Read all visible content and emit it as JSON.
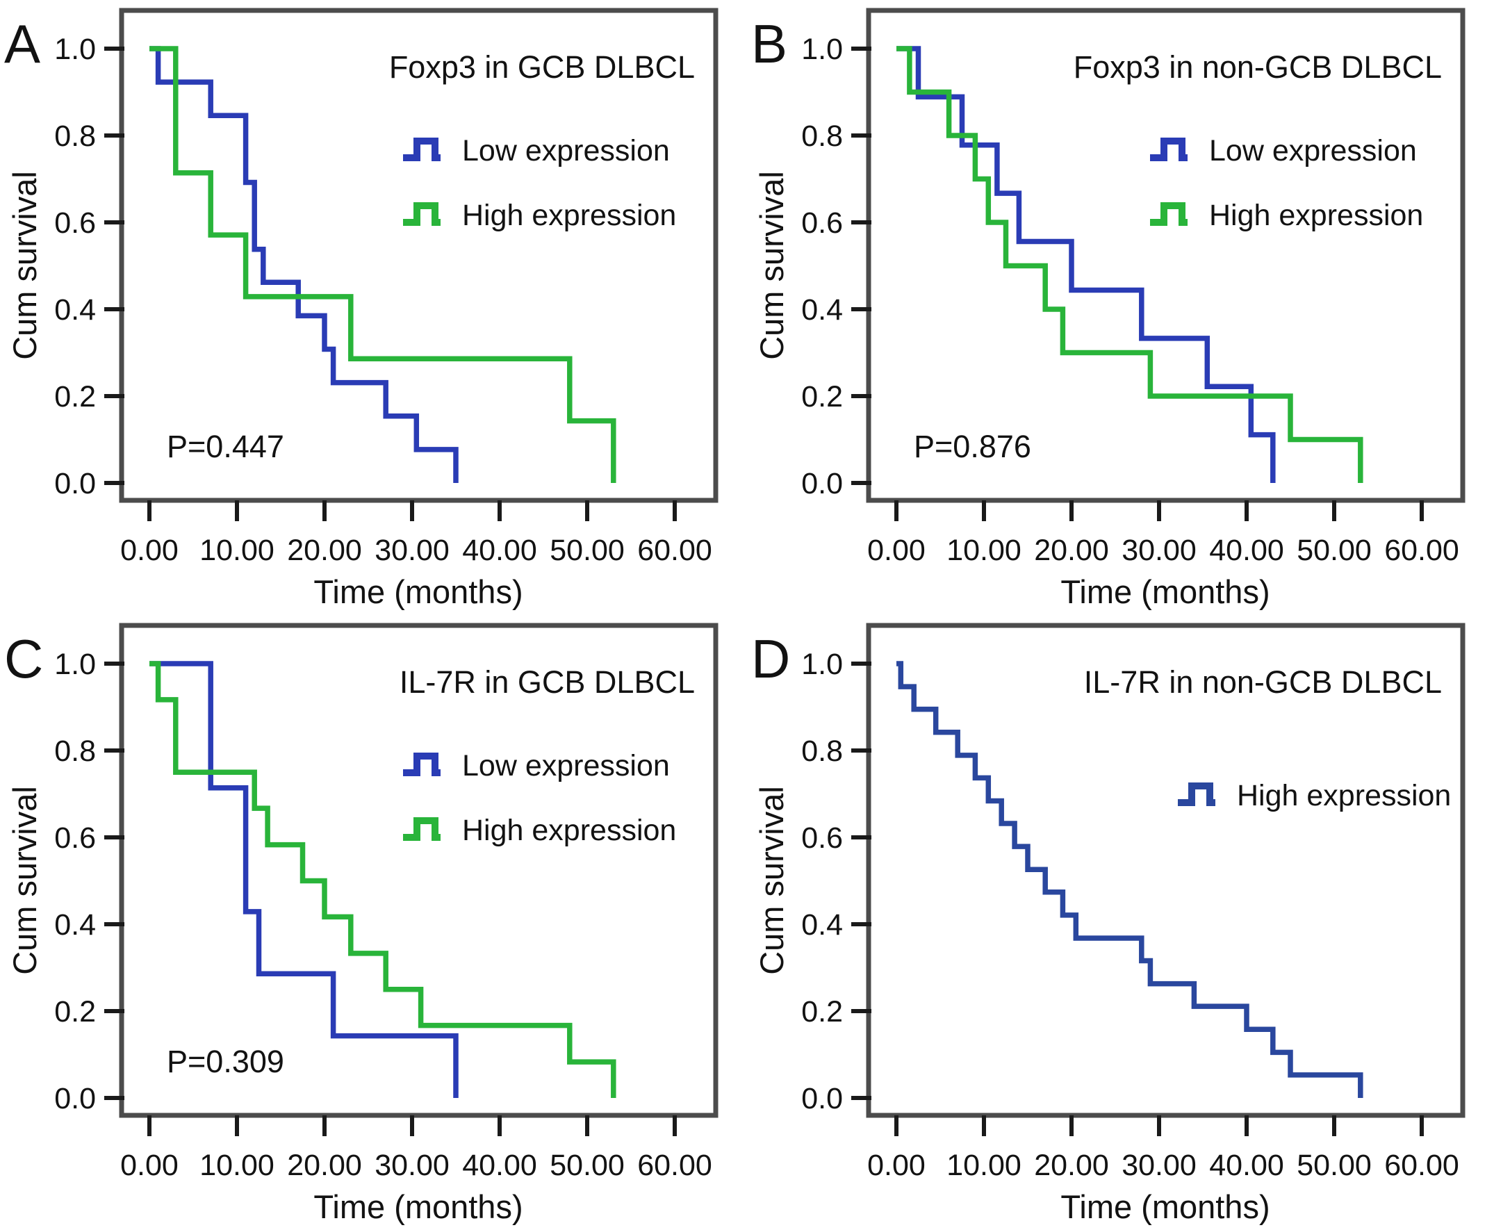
{
  "figure": {
    "x_axis_label": "Time (months)",
    "y_axis_label": "Cum survival",
    "x_tick_labels": [
      "0.00",
      "10.00",
      "20.00",
      "30.00",
      "40.00",
      "50.00",
      "60.00"
    ],
    "x_tick_values": [
      0,
      10,
      20,
      30,
      40,
      50,
      60
    ],
    "y_tick_labels": [
      "1.0",
      "0.8",
      "0.6",
      "0.4",
      "0.2",
      "0.0"
    ],
    "y_tick_values": [
      1.0,
      0.8,
      0.6,
      0.4,
      0.2,
      0.0
    ],
    "colors": {
      "low_expression_blue": "#2a3cb5",
      "high_expression_green": "#29b43a",
      "panel_d_blue": "#2a479e",
      "frame_gray": "#4c4c4c",
      "tick_black": "#1a1a1a",
      "text_black": "#121212",
      "background": "#ffffff"
    }
  },
  "chart_data": [
    {
      "type": "line",
      "panel": "A",
      "title": "Foxp3 in GCB DLBCL",
      "p_value": "P=0.447",
      "xlabel": "Time (months)",
      "ylabel": "Cum survival",
      "xlim": [
        0,
        60
      ],
      "ylim": [
        0.0,
        1.0
      ],
      "legend_position": "top-right-inside",
      "grid": false,
      "series": [
        {
          "name": "Low expression",
          "color": "#2a3cb5",
          "start": [
            0,
            1.0
          ],
          "steps": [
            [
              1,
              0.923
            ],
            [
              7,
              0.846
            ],
            [
              11,
              0.692
            ],
            [
              12,
              0.538
            ],
            [
              13,
              0.462
            ],
            [
              17,
              0.385
            ],
            [
              20,
              0.308
            ],
            [
              21,
              0.231
            ],
            [
              27,
              0.154
            ],
            [
              30.5,
              0.077
            ],
            [
              35,
              0.0
            ]
          ]
        },
        {
          "name": "High expression",
          "color": "#29b43a",
          "start": [
            0,
            1.0
          ],
          "steps": [
            [
              3,
              0.714
            ],
            [
              7,
              0.571
            ],
            [
              11,
              0.429
            ],
            [
              23,
              0.286
            ],
            [
              48,
              0.143
            ],
            [
              53,
              0.0
            ]
          ]
        }
      ]
    },
    {
      "type": "line",
      "panel": "B",
      "title": "Foxp3 in non-GCB DLBCL",
      "p_value": "P=0.876",
      "xlabel": "Time (months)",
      "ylabel": "Cum survival",
      "xlim": [
        0,
        60
      ],
      "ylim": [
        0.0,
        1.0
      ],
      "legend_position": "top-right-inside",
      "grid": false,
      "series": [
        {
          "name": "Low expression",
          "color": "#2a3cb5",
          "start": [
            0,
            1.0
          ],
          "steps": [
            [
              2.5,
              0.889
            ],
            [
              7.5,
              0.778
            ],
            [
              11.5,
              0.667
            ],
            [
              14,
              0.556
            ],
            [
              20,
              0.444
            ],
            [
              28,
              0.333
            ],
            [
              35.5,
              0.222
            ],
            [
              40.5,
              0.111
            ],
            [
              43,
              0.0
            ]
          ]
        },
        {
          "name": "High expression",
          "color": "#29b43a",
          "start": [
            0,
            1.0
          ],
          "steps": [
            [
              1.5,
              0.9
            ],
            [
              6,
              0.8
            ],
            [
              9,
              0.7
            ],
            [
              10.5,
              0.6
            ],
            [
              12.5,
              0.5
            ],
            [
              17,
              0.4
            ],
            [
              19,
              0.3
            ],
            [
              29,
              0.2
            ],
            [
              45,
              0.1
            ],
            [
              53,
              0.0
            ]
          ]
        }
      ]
    },
    {
      "type": "line",
      "panel": "C",
      "title": "IL-7R in GCB DLBCL",
      "p_value": "P=0.309",
      "xlabel": "Time (months)",
      "ylabel": "Cum survival",
      "xlim": [
        0,
        60
      ],
      "ylim": [
        0.0,
        1.0
      ],
      "legend_position": "top-right-inside",
      "grid": false,
      "series": [
        {
          "name": "Low expression",
          "color": "#2a3cb5",
          "start": [
            0,
            1.0
          ],
          "steps": [
            [
              7,
              0.714
            ],
            [
              11,
              0.429
            ],
            [
              12.5,
              0.286
            ],
            [
              21,
              0.143
            ],
            [
              35,
              0.0
            ]
          ]
        },
        {
          "name": "High expression",
          "color": "#29b43a",
          "start": [
            0,
            1.0
          ],
          "steps": [
            [
              1,
              0.917
            ],
            [
              3,
              0.75
            ],
            [
              12,
              0.667
            ],
            [
              13.5,
              0.583
            ],
            [
              17.5,
              0.5
            ],
            [
              20,
              0.417
            ],
            [
              23,
              0.333
            ],
            [
              27,
              0.25
            ],
            [
              31,
              0.167
            ],
            [
              48,
              0.083
            ],
            [
              53,
              0.0
            ]
          ]
        }
      ]
    },
    {
      "type": "line",
      "panel": "D",
      "title": "IL-7R in non-GCB DLBCL",
      "p_value": "",
      "xlabel": "Time (months)",
      "ylabel": "Cum survival",
      "xlim": [
        0,
        60
      ],
      "ylim": [
        0.0,
        1.0
      ],
      "legend_position": "top-right-inside",
      "grid": false,
      "series": [
        {
          "name": "High expression",
          "color": "#2a479e",
          "start": [
            0,
            1.0
          ],
          "steps": [
            [
              0.5,
              0.947
            ],
            [
              2,
              0.895
            ],
            [
              4.5,
              0.842
            ],
            [
              7,
              0.789
            ],
            [
              9,
              0.737
            ],
            [
              10.5,
              0.684
            ],
            [
              12,
              0.632
            ],
            [
              13.5,
              0.579
            ],
            [
              15,
              0.526
            ],
            [
              17,
              0.474
            ],
            [
              19,
              0.421
            ],
            [
              20.5,
              0.368
            ],
            [
              28,
              0.316
            ],
            [
              29,
              0.263
            ],
            [
              34,
              0.211
            ],
            [
              40,
              0.158
            ],
            [
              43,
              0.105
            ],
            [
              45,
              0.053
            ],
            [
              53,
              0.0
            ]
          ]
        }
      ]
    }
  ]
}
